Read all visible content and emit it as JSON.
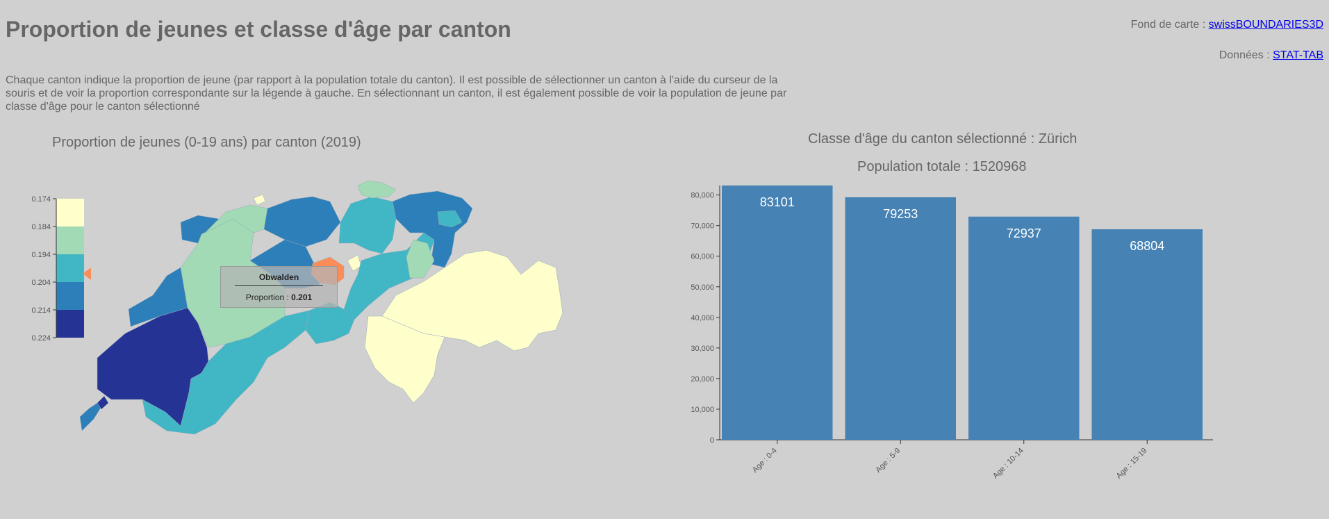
{
  "header": {
    "title": "Proportion de jeunes et classe d'âge par canton",
    "intro": "Chaque canton indique la proportion de jeune (par rapport à la population totale du canton). Il est possible de sélectionner un canton à l'aide du curseur de la souris et de voir la proportion correspondante sur la légende à gauche. En sélectionnant un canton, il est également possible de voir la population de jeune par classe d'âge pour le canton sélectionné"
  },
  "credits": [
    {
      "label": "Fond de carte : ",
      "link": "swissBOUNDARIES3D"
    },
    {
      "label": "Données : ",
      "link": "STAT-TAB"
    }
  ],
  "map": {
    "title": "Proportion de jeunes (0-19 ans) par canton (2019)",
    "legend_ticks": [
      "0.174",
      "0.184",
      "0.194",
      "0.204",
      "0.214",
      "0.224"
    ],
    "legend_colors": [
      "#ffffcc",
      "#a1dab4",
      "#41b6c4",
      "#2c7fb8",
      "#253494"
    ],
    "highlight_color": "#fc8d59",
    "marker_value": 0.201,
    "tooltip": {
      "name": "Obwalden",
      "label": "Proportion : ",
      "value": "0.201"
    }
  },
  "chart_data": {
    "type": "bar",
    "title": "Classe d'âge du canton sélectionné : Zürich",
    "subtitle": "Population totale : 1520968",
    "categories": [
      "Age : 0-4",
      "Age : 5-9",
      "Age : 10-14",
      "Age : 15-19"
    ],
    "values": [
      83101,
      79253,
      72937,
      68804
    ],
    "y_ticks": [
      "0",
      "10,000",
      "20,000",
      "30,000",
      "40,000",
      "50,000",
      "60,000",
      "70,000",
      "80,000"
    ],
    "ylim": [
      0,
      83101
    ],
    "bar_color": "#4682b4",
    "grid": false
  }
}
